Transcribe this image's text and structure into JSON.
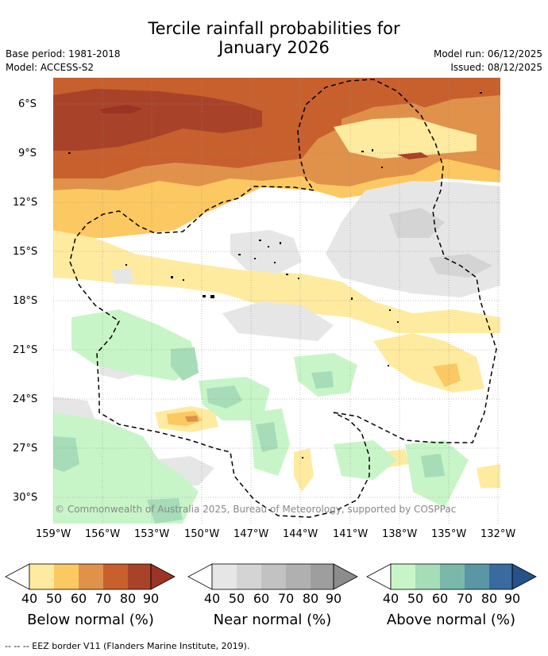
{
  "header": {
    "title_line1": "Tercile rainfall probabilities for",
    "title_line2": "January 2026",
    "base_period": "Base period: 1981-2018",
    "model": "Model: ACCESS-S2",
    "model_run": "Model run: 06/12/2025",
    "issued": "Issued: 08/12/2025"
  },
  "map": {
    "lat_labels": [
      "6°S",
      "9°S",
      "12°S",
      "15°S",
      "18°S",
      "21°S",
      "24°S",
      "27°S",
      "30°S"
    ],
    "lon_labels": [
      "159°W",
      "156°W",
      "153°W",
      "150°W",
      "147°W",
      "144°W",
      "141°W",
      "138°W",
      "135°W",
      "132°W"
    ],
    "copyright": "© Commonwealth of Australia 2025, Bureau of Meteorology, supported by COSPPac"
  },
  "legends": [
    {
      "title": "Below normal (%)",
      "ticks": [
        "40",
        "50",
        "60",
        "70",
        "80",
        "90"
      ],
      "colors": [
        "#ffeba0",
        "#fcc862",
        "#e0924a",
        "#c8602e",
        "#a8432a",
        "#9b3424"
      ]
    },
    {
      "title": "Near normal (%)",
      "ticks": [
        "40",
        "50",
        "60",
        "70",
        "80",
        "90"
      ],
      "colors": [
        "#e6e6e6",
        "#d4d4d4",
        "#c2c2c2",
        "#b0b0b0",
        "#9e9e9e",
        "#8c8c8c"
      ]
    },
    {
      "title": "Above normal (%)",
      "ticks": [
        "40",
        "50",
        "60",
        "70",
        "80",
        "90"
      ],
      "colors": [
        "#c8f5c8",
        "#a6dcb8",
        "#7ab8aa",
        "#5a96a4",
        "#3a6aa0",
        "#24528a"
      ]
    }
  ],
  "footer": {
    "text": "--  --  -- EEZ border V11 (Flanders Marine Institute, 2019)."
  }
}
